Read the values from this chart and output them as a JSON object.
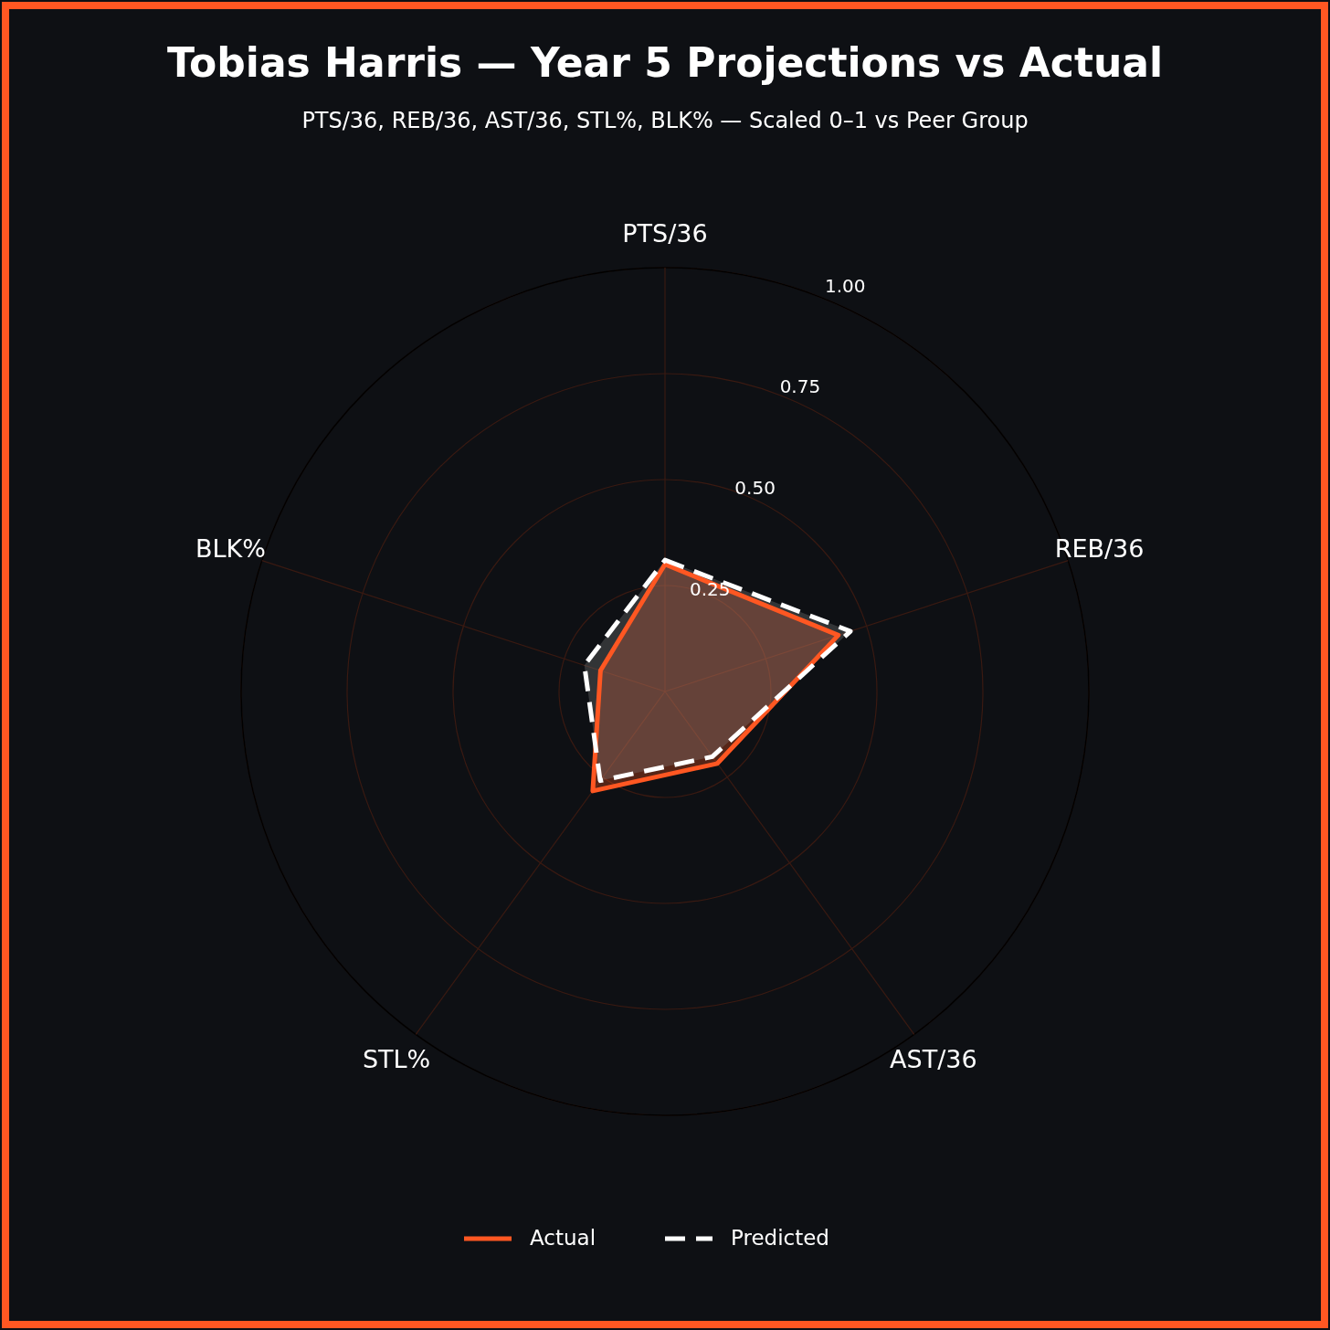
{
  "chart_data": {
    "type": "radar",
    "title": "Tobias Harris — Year 5 Projections vs Actual",
    "subtitle": "PTS/36, REB/36, AST/36, STL%, BLK% — Scaled 0–1 vs Peer Group",
    "categories": [
      "PTS/36",
      "REB/36",
      "AST/36",
      "STL%",
      "BLK%"
    ],
    "series": [
      {
        "name": "Actual",
        "color": "#ff5722",
        "line_style": "solid",
        "values": [
          0.3,
          0.43,
          0.21,
          0.29,
          0.16
        ]
      },
      {
        "name": "Predicted",
        "color": "#ffffff",
        "line_style": "dashed",
        "values": [
          0.31,
          0.46,
          0.19,
          0.26,
          0.2
        ]
      }
    ],
    "ylim": [
      0,
      1
    ],
    "yticks": [
      0.25,
      {
        "value": 0.5,
        "label": "0.50"
      },
      0.75,
      {
        "value": 1,
        "label": "1.00"
      }
    ],
    "grid": true,
    "legend": "bottom"
  }
}
